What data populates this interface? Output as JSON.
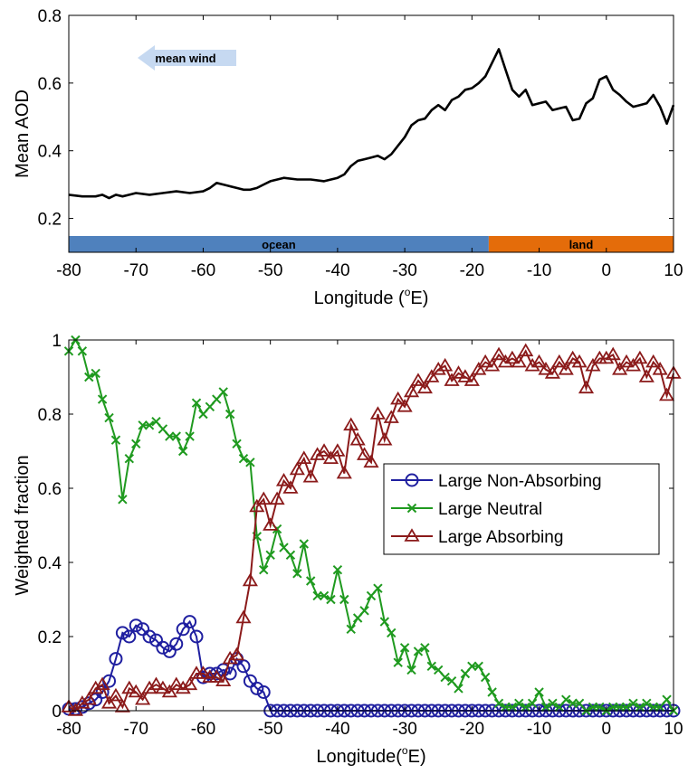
{
  "chart_data": [
    {
      "type": "line",
      "xlabel": "Longitude (",
      "xlabel_sup": "o",
      "xlabel_end": "E)",
      "ylabel": "Mean AOD",
      "xlim": [
        -80,
        10
      ],
      "ylim": [
        0.1,
        0.8
      ],
      "xticks": [
        "-80",
        "-70",
        "-60",
        "-50",
        "-40",
        "-30",
        "-20",
        "-10",
        "0",
        "10"
      ],
      "yticks": [
        "0.2",
        "0.4",
        "0.6",
        "0.8"
      ],
      "ytick_values": [
        0.2,
        0.4,
        0.6,
        0.8
      ],
      "grid": false,
      "series": [
        {
          "color": "#000000",
          "x": [
            -80,
            -78,
            -76,
            -75,
            -74,
            -73,
            -72,
            -71,
            -70,
            -68,
            -66,
            -64,
            -62,
            -60,
            -59,
            -58,
            -57,
            -56,
            -55,
            -54,
            -53,
            -52,
            -51,
            -50,
            -48,
            -46,
            -44,
            -42,
            -40,
            -39,
            -38,
            -37,
            -36,
            -35,
            -34,
            -33,
            -32,
            -31,
            -30,
            -29,
            -28,
            -27,
            -26,
            -25,
            -24,
            -23,
            -22,
            -21,
            -20,
            -19,
            -18,
            -17,
            -16,
            -15,
            -14,
            -13,
            -12,
            -11,
            -10,
            -9,
            -8,
            -7,
            -6,
            -5,
            -4,
            -3,
            -2,
            -1,
            0,
            1,
            2,
            3,
            4,
            5,
            6,
            7,
            8,
            9,
            10
          ],
          "y": [
            0.27,
            0.265,
            0.265,
            0.27,
            0.26,
            0.27,
            0.265,
            0.27,
            0.275,
            0.27,
            0.275,
            0.28,
            0.275,
            0.28,
            0.29,
            0.305,
            0.3,
            0.295,
            0.29,
            0.285,
            0.285,
            0.29,
            0.3,
            0.31,
            0.32,
            0.315,
            0.315,
            0.31,
            0.32,
            0.33,
            0.355,
            0.37,
            0.375,
            0.38,
            0.385,
            0.375,
            0.39,
            0.415,
            0.44,
            0.475,
            0.49,
            0.495,
            0.52,
            0.535,
            0.52,
            0.55,
            0.56,
            0.58,
            0.585,
            0.6,
            0.62,
            0.66,
            0.7,
            0.64,
            0.58,
            0.56,
            0.58,
            0.535,
            0.54,
            0.545,
            0.52,
            0.525,
            0.53,
            0.49,
            0.495,
            0.54,
            0.555,
            0.61,
            0.62,
            0.58,
            0.565,
            0.545,
            0.53,
            0.535,
            0.54,
            0.565,
            0.53,
            0.48,
            0.535
          ]
        }
      ],
      "bands": [
        {
          "label": "ocean",
          "x0": -80,
          "x1": -17.5,
          "color": "#4f81bd"
        },
        {
          "label": "land",
          "x0": -17.5,
          "x1": 10,
          "color": "#e46c0a"
        }
      ],
      "annotation": {
        "text": "mean wind",
        "x": -67,
        "y": 0.677,
        "color": "#c6d9f1"
      }
    },
    {
      "type": "line",
      "xlabel": "Longitude(",
      "xlabel_sup": "o",
      "xlabel_end": "E)",
      "ylabel": "Weighted fraction",
      "xlim": [
        -80,
        10
      ],
      "ylim": [
        0,
        1
      ],
      "xticks": [
        "-80",
        "-70",
        "-60",
        "-50",
        "-40",
        "-30",
        "-20",
        "-10",
        "0",
        "10"
      ],
      "yticks": [
        "0",
        "0.2",
        "0.4",
        "0.6",
        "0.8",
        "1"
      ],
      "ytick_values": [
        0,
        0.2,
        0.4,
        0.6,
        0.8,
        1
      ],
      "grid": false,
      "legend_position": "center-right",
      "series": [
        {
          "name": "Large Non-Absorbing",
          "color": "#1f1fa0",
          "marker": "circle",
          "x": [
            -80,
            -79,
            -78,
            -77,
            -76,
            -75,
            -74,
            -73,
            -72,
            -71,
            -70,
            -69,
            -68,
            -67,
            -66,
            -65,
            -64,
            -63,
            -62,
            -61,
            -60,
            -59,
            -58,
            -57,
            -56,
            -55,
            -54,
            -53,
            -52,
            -51,
            -50,
            -49,
            -48,
            -47,
            -46,
            -45,
            -44,
            -43,
            -42,
            -41,
            -40,
            -39,
            -38,
            -37,
            -36,
            -35,
            -34,
            -33,
            -32,
            -31,
            -30,
            -29,
            -28,
            -27,
            -26,
            -25,
            -24,
            -23,
            -22,
            -21,
            -20,
            -19,
            -18,
            -17,
            -16,
            -15,
            -14,
            -13,
            -12,
            -11,
            -10,
            -9,
            -8,
            -7,
            -6,
            -5,
            -4,
            -3,
            -2,
            -1,
            0,
            1,
            2,
            3,
            4,
            5,
            6,
            7,
            8,
            9,
            10
          ],
          "y": [
            0.005,
            0.005,
            0.01,
            0.02,
            0.03,
            0.05,
            0.08,
            0.14,
            0.21,
            0.2,
            0.23,
            0.22,
            0.2,
            0.19,
            0.17,
            0.16,
            0.18,
            0.22,
            0.24,
            0.2,
            0.09,
            0.1,
            0.1,
            0.11,
            0.1,
            0.14,
            0.12,
            0.08,
            0.06,
            0.05,
            0,
            0,
            0,
            0,
            0,
            0,
            0,
            0,
            0,
            0,
            0,
            0,
            0,
            0,
            0,
            0,
            0,
            0,
            0,
            0,
            0,
            0,
            0,
            0,
            0,
            0,
            0,
            0,
            0,
            0,
            0,
            0,
            0,
            0,
            0,
            0,
            0,
            0,
            0,
            0,
            0,
            0,
            0,
            0,
            0,
            0,
            0,
            0,
            0,
            0,
            0,
            0,
            0,
            0,
            0,
            0,
            0,
            0,
            0,
            0,
            0
          ]
        },
        {
          "name": "Large Neutral",
          "color": "#1f9a1f",
          "marker": "x",
          "x": [
            -80,
            -79,
            -78,
            -77,
            -76,
            -75,
            -74,
            -73,
            -72,
            -71,
            -70,
            -69,
            -68,
            -67,
            -66,
            -65,
            -64,
            -63,
            -62,
            -61,
            -60,
            -59,
            -58,
            -57,
            -56,
            -55,
            -54,
            -53,
            -52,
            -51,
            -50,
            -49,
            -48,
            -47,
            -46,
            -45,
            -44,
            -43,
            -42,
            -41,
            -40,
            -39,
            -38,
            -37,
            -36,
            -35,
            -34,
            -33,
            -32,
            -31,
            -30,
            -29,
            -28,
            -27,
            -26,
            -25,
            -24,
            -23,
            -22,
            -21,
            -20,
            -19,
            -18,
            -17,
            -16,
            -15,
            -14,
            -13,
            -12,
            -11,
            -10,
            -9,
            -8,
            -7,
            -6,
            -5,
            -4,
            -3,
            -2,
            -1,
            0,
            1,
            2,
            3,
            4,
            5,
            6,
            7,
            8,
            9,
            10
          ],
          "y": [
            0.97,
            1.0,
            0.97,
            0.9,
            0.91,
            0.84,
            0.79,
            0.73,
            0.57,
            0.68,
            0.72,
            0.77,
            0.77,
            0.78,
            0.76,
            0.74,
            0.74,
            0.7,
            0.74,
            0.83,
            0.8,
            0.82,
            0.84,
            0.86,
            0.8,
            0.72,
            0.68,
            0.67,
            0.47,
            0.38,
            0.42,
            0.49,
            0.44,
            0.42,
            0.37,
            0.45,
            0.35,
            0.31,
            0.31,
            0.3,
            0.38,
            0.3,
            0.22,
            0.25,
            0.27,
            0.31,
            0.33,
            0.24,
            0.21,
            0.13,
            0.17,
            0.11,
            0.16,
            0.17,
            0.12,
            0.11,
            0.09,
            0.08,
            0.06,
            0.1,
            0.12,
            0.12,
            0.09,
            0.05,
            0.02,
            0.01,
            0.01,
            0.02,
            0.01,
            0.02,
            0.05,
            0.01,
            0.02,
            0.01,
            0.03,
            0.02,
            0.02,
            0.0,
            0.01,
            0.01,
            0.0,
            0.01,
            0.01,
            0.01,
            0.02,
            0.01,
            0.02,
            0.01,
            0.01,
            0.03,
            0.0
          ]
        },
        {
          "name": "Large Absorbing",
          "color": "#8b1a1a",
          "marker": "triangle",
          "x": [
            -80,
            -79,
            -78,
            -77,
            -76,
            -75,
            -74,
            -73,
            -72,
            -71,
            -70,
            -69,
            -68,
            -67,
            -66,
            -65,
            -64,
            -63,
            -62,
            -61,
            -60,
            -59,
            -58,
            -57,
            -56,
            -55,
            -54,
            -53,
            -52,
            -51,
            -50,
            -49,
            -48,
            -47,
            -46,
            -45,
            -44,
            -43,
            -42,
            -41,
            -40,
            -39,
            -38,
            -37,
            -36,
            -35,
            -34,
            -33,
            -32,
            -31,
            -30,
            -29,
            -28,
            -27,
            -26,
            -25,
            -24,
            -23,
            -22,
            -21,
            -20,
            -19,
            -18,
            -17,
            -16,
            -15,
            -14,
            -13,
            -12,
            -11,
            -10,
            -9,
            -8,
            -7,
            -6,
            -5,
            -4,
            -3,
            -2,
            -1,
            0,
            1,
            2,
            3,
            4,
            5,
            6,
            7,
            8,
            9,
            10
          ],
          "y": [
            0.01,
            0.0,
            0.02,
            0.03,
            0.06,
            0.07,
            0.02,
            0.04,
            0.01,
            0.06,
            0.05,
            0.03,
            0.06,
            0.07,
            0.06,
            0.05,
            0.07,
            0.06,
            0.07,
            0.1,
            0.1,
            0.09,
            0.09,
            0.08,
            0.14,
            0.15,
            0.25,
            0.35,
            0.55,
            0.57,
            0.5,
            0.57,
            0.62,
            0.6,
            0.65,
            0.68,
            0.63,
            0.69,
            0.7,
            0.68,
            0.7,
            0.64,
            0.77,
            0.73,
            0.69,
            0.67,
            0.8,
            0.73,
            0.79,
            0.84,
            0.82,
            0.86,
            0.89,
            0.87,
            0.9,
            0.92,
            0.93,
            0.89,
            0.91,
            0.9,
            0.89,
            0.92,
            0.94,
            0.93,
            0.96,
            0.94,
            0.95,
            0.94,
            0.97,
            0.93,
            0.94,
            0.92,
            0.91,
            0.94,
            0.92,
            0.95,
            0.94,
            0.87,
            0.93,
            0.95,
            0.95,
            0.96,
            0.92,
            0.94,
            0.93,
            0.95,
            0.9,
            0.94,
            0.92,
            0.85,
            0.91
          ]
        }
      ]
    }
  ]
}
